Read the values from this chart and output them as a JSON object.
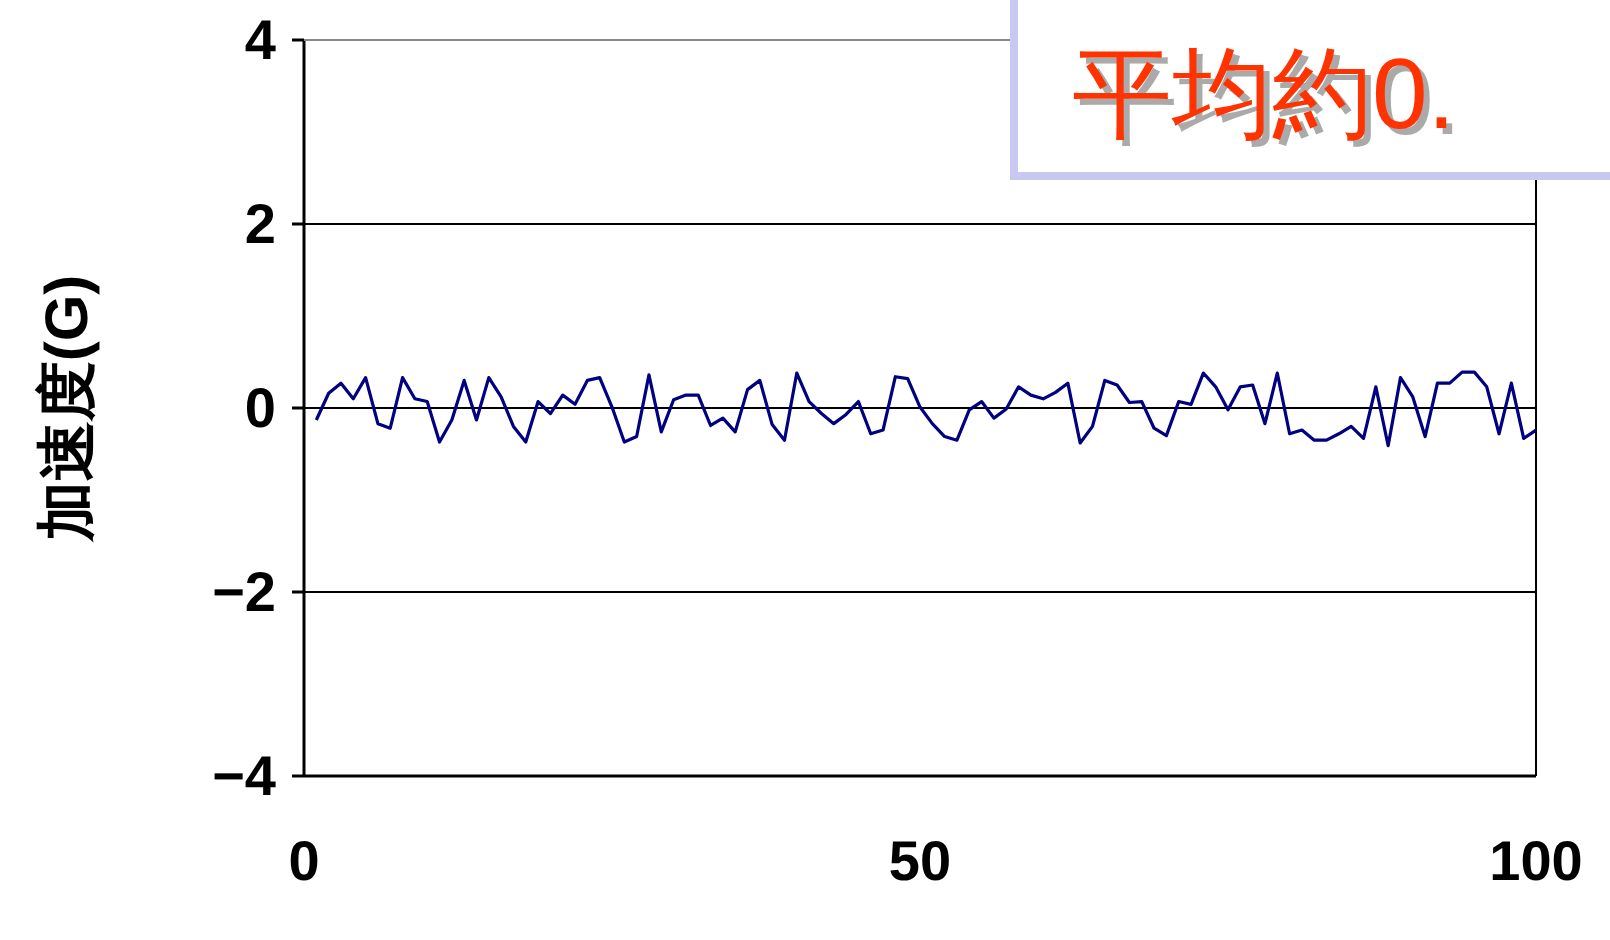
{
  "chart_data": {
    "type": "line",
    "ylabel": "加速度(G)",
    "annotations": [
      "平均約0."
    ],
    "xlim": [
      0,
      100
    ],
    "xticks": [
      0,
      50,
      100
    ],
    "ylim": [
      -4,
      4
    ],
    "yticks": [
      4,
      2,
      0,
      {
        "value": -2,
        "label": "−2"
      },
      {
        "value": -4,
        "label": "−4"
      }
    ],
    "grid": "y",
    "series": [
      {
        "color": "#000080",
        "x": [
          1,
          2,
          3,
          4,
          5,
          6,
          7,
          8,
          9,
          10,
          11,
          12,
          13,
          14,
          15,
          16,
          17,
          18,
          19,
          20,
          21,
          22,
          23,
          24,
          25,
          26,
          27,
          28,
          29,
          30,
          31,
          32,
          33,
          34,
          35,
          36,
          37,
          38,
          39,
          40,
          41,
          42,
          43,
          44,
          45,
          46,
          47,
          48,
          49,
          50,
          51,
          52,
          53,
          54,
          55,
          56,
          57,
          58,
          59,
          60,
          61,
          62,
          63,
          64,
          65,
          66,
          67,
          68,
          69,
          70,
          71,
          72,
          73,
          74,
          75,
          76,
          77,
          78,
          79,
          80,
          81,
          82,
          83,
          84,
          85,
          86,
          87,
          88,
          89,
          90,
          91,
          92,
          93,
          94,
          95,
          96,
          97,
          98,
          99,
          100
        ],
        "values": [
          -0.13,
          0.16,
          0.27,
          0.1,
          0.33,
          -0.17,
          -0.22,
          0.33,
          0.1,
          0.07,
          -0.37,
          -0.13,
          0.3,
          -0.13,
          0.33,
          0.12,
          -0.2,
          -0.37,
          0.07,
          -0.06,
          0.14,
          0.04,
          0.3,
          0.33,
          0.01,
          -0.37,
          -0.31,
          0.36,
          -0.26,
          0.09,
          0.14,
          0.14,
          -0.19,
          -0.11,
          -0.26,
          0.2,
          0.3,
          -0.18,
          -0.35,
          0.38,
          0.07,
          -0.06,
          -0.17,
          -0.07,
          0.07,
          -0.28,
          -0.24,
          0.34,
          0.32,
          0.01,
          -0.17,
          -0.31,
          -0.35,
          -0.02,
          0.07,
          -0.11,
          -0.01,
          0.23,
          0.14,
          0.1,
          0.17,
          0.27,
          -0.38,
          -0.2,
          0.3,
          0.25,
          0.06,
          0.07,
          -0.22,
          -0.3,
          0.07,
          0.04,
          0.38,
          0.23,
          -0.02,
          0.23,
          0.25,
          -0.17,
          0.38,
          -0.28,
          -0.24,
          -0.35,
          -0.35,
          -0.28,
          -0.2,
          -0.33,
          0.23,
          -0.41,
          0.33,
          0.12,
          -0.31,
          0.27,
          0.27,
          0.39,
          0.39,
          0.23,
          -0.28,
          0.27,
          -0.33,
          -0.24
        ]
      }
    ]
  }
}
